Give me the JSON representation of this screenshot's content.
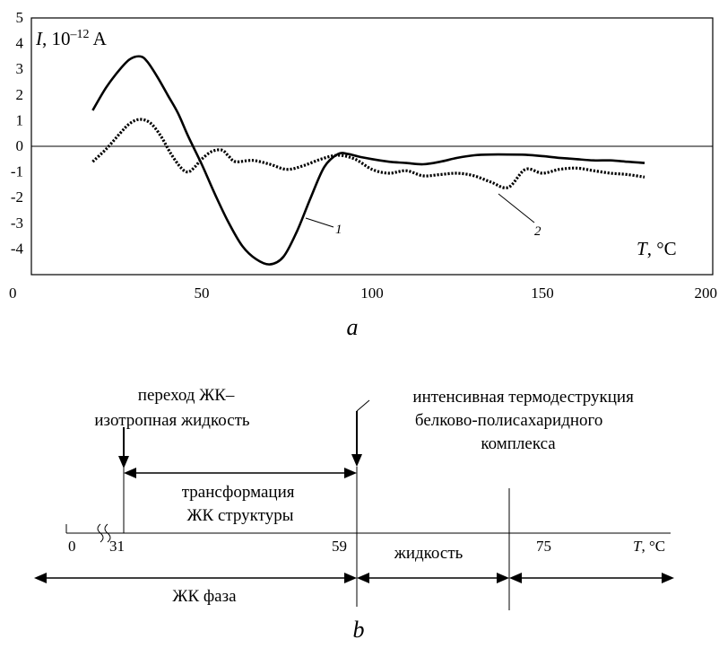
{
  "chart_data": {
    "type": "line",
    "panel_caption": "a",
    "y_axis_label": {
      "var": "I",
      "text": ", 10",
      "exp": "–12",
      "unit": " A"
    },
    "x_axis_label": {
      "var": "T",
      "unit": ", °C"
    },
    "xlim": [
      0,
      200
    ],
    "ylim": [
      -5,
      5
    ],
    "x_ticks": [
      0,
      50,
      100,
      150,
      200
    ],
    "y_ticks": [
      5,
      4,
      3,
      2,
      1,
      0,
      -1,
      -2,
      -3,
      -4
    ],
    "grid": false,
    "series": [
      {
        "name": "1",
        "style": "solid",
        "x": [
          18,
          22,
          26,
          29,
          32,
          34,
          37,
          40,
          43,
          46,
          50,
          54,
          58,
          62,
          66,
          70,
          74,
          78,
          82,
          86,
          90,
          93,
          96,
          100,
          105,
          110,
          115,
          120,
          125,
          130,
          135,
          140,
          145,
          150,
          155,
          160,
          165,
          170,
          175,
          180
        ],
        "y": [
          1.4,
          2.3,
          3.0,
          3.4,
          3.5,
          3.3,
          2.7,
          2.0,
          1.3,
          0.4,
          -0.7,
          -1.9,
          -3.0,
          -3.9,
          -4.4,
          -4.6,
          -4.3,
          -3.3,
          -2.0,
          -0.8,
          -0.3,
          -0.3,
          -0.4,
          -0.5,
          -0.6,
          -0.65,
          -0.7,
          -0.6,
          -0.45,
          -0.35,
          -0.32,
          -0.32,
          -0.33,
          -0.38,
          -0.45,
          -0.5,
          -0.55,
          -0.55,
          -0.6,
          -0.65
        ]
      },
      {
        "name": "2",
        "style": "dotted",
        "x": [
          18,
          22,
          26,
          29,
          32,
          35,
          38,
          41,
          44,
          46,
          48,
          50,
          53,
          56,
          58,
          60,
          65,
          70,
          75,
          80,
          85,
          90,
          95,
          100,
          105,
          110,
          115,
          120,
          125,
          130,
          135,
          140,
          145,
          150,
          155,
          160,
          165,
          170,
          175,
          180
        ],
        "y": [
          -0.6,
          -0.1,
          0.5,
          0.9,
          1.05,
          0.9,
          0.4,
          -0.3,
          -0.85,
          -1.0,
          -0.8,
          -0.5,
          -0.2,
          -0.15,
          -0.4,
          -0.6,
          -0.55,
          -0.7,
          -0.9,
          -0.75,
          -0.5,
          -0.35,
          -0.5,
          -0.9,
          -1.05,
          -0.95,
          -1.15,
          -1.1,
          -1.05,
          -1.15,
          -1.4,
          -1.6,
          -0.9,
          -1.05,
          -0.9,
          -0.85,
          -0.95,
          -1.05,
          -1.1,
          -1.2
        ]
      }
    ]
  },
  "diagram": {
    "panel_caption": "b",
    "transition_label_lines": [
      "переход ЖК–",
      "изотропная жидкость"
    ],
    "destruction_label_lines": [
      "интенсивная термодеструкция",
      "белково-полисахаридного",
      "комплекса"
    ],
    "transformation_label_lines": [
      "трансформация",
      "ЖК структуры"
    ],
    "axis_values": [
      "0",
      "31",
      "59",
      "75"
    ],
    "liquid_label": "жидкость",
    "lc_phase_label": "ЖК фаза",
    "axis_var": "T",
    "axis_unit": ", °C"
  }
}
